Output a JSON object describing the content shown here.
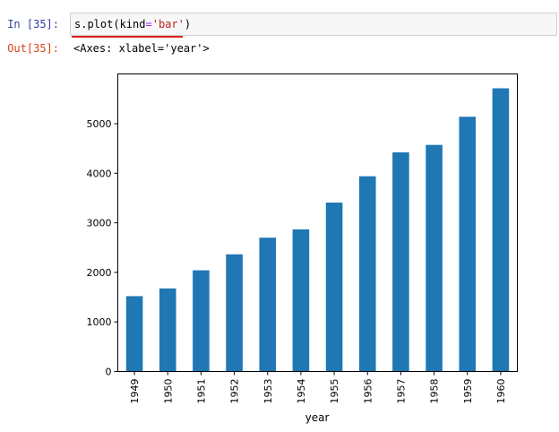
{
  "cell_in": {
    "prompt": "In  [35]:",
    "code_prefix": "s.plot(kind",
    "code_op": "=",
    "code_str": "'bar'",
    "code_suffix": ")"
  },
  "cell_out": {
    "prompt": "Out[35]:",
    "text": "<Axes: xlabel='year'>"
  },
  "chart_data": {
    "type": "bar",
    "categories": [
      "1949",
      "1950",
      "1951",
      "1952",
      "1953",
      "1954",
      "1955",
      "1956",
      "1957",
      "1958",
      "1959",
      "1960"
    ],
    "values": [
      1520,
      1676,
      2042,
      2364,
      2700,
      2867,
      3408,
      3939,
      4421,
      4572,
      5140,
      5714
    ],
    "title": "",
    "xlabel": "year",
    "ylabel": "",
    "ylim": [
      0,
      6000
    ],
    "yticks": [
      0,
      1000,
      2000,
      3000,
      4000,
      5000
    ],
    "bar_color": "#1f77b4",
    "grid": false
  }
}
